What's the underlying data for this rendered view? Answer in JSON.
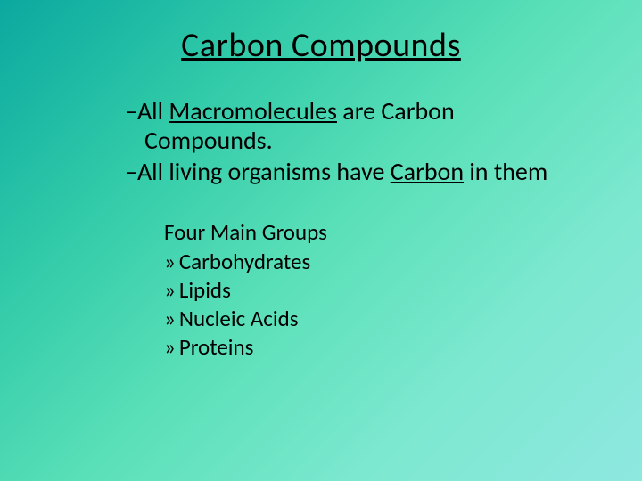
{
  "slide": {
    "title": "Carbon Compounds",
    "bullets": [
      {
        "prefix": "–",
        "parts": [
          "All ",
          "Macromolecules",
          " are Carbon Compounds."
        ],
        "underline_index": 1
      },
      {
        "prefix": "–",
        "parts": [
          "All living organisms have ",
          "Carbon",
          " in them"
        ],
        "underline_index": 1
      }
    ],
    "sub_heading": "Four Main Groups",
    "sub_bullets_prefix": "»",
    "sub_bullets": [
      "Carbohydrates",
      "Lipids",
      "Nucleic Acids",
      "Proteins"
    ]
  },
  "style": {
    "background_gradient": [
      "#0ba8a0",
      "#2fc9a8",
      "#5ae0b8",
      "#7de8d0",
      "#8ee8e0"
    ],
    "text_color": "#000000",
    "title_fontsize": 38,
    "body_fontsize": 28,
    "sub_fontsize": 25,
    "font_family": "Calibri"
  }
}
